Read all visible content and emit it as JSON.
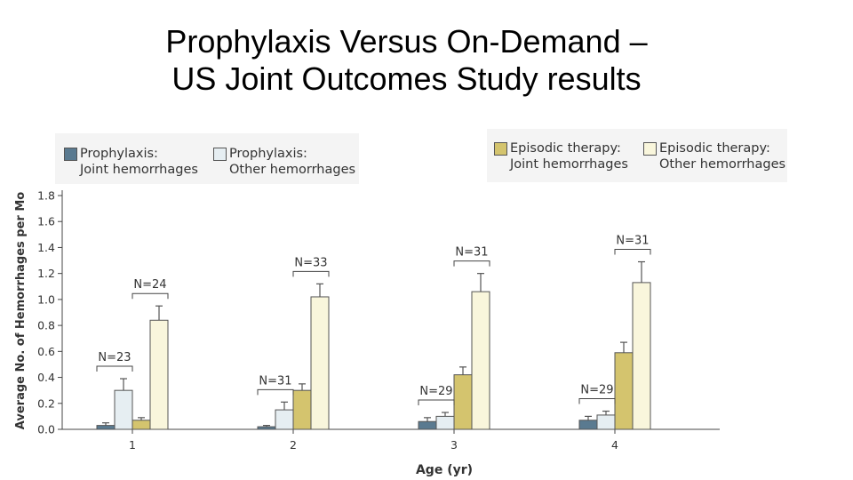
{
  "slide": {
    "title_line1": "Prophylaxis Versus On-Demand –",
    "title_line2": "US Joint Outcomes Study results"
  },
  "legend": [
    {
      "label": "Prophylaxis:\nJoint hemorrhages",
      "color": "#5a7a90"
    },
    {
      "label": "Prophylaxis:\nOther hemorrhages",
      "color": "#e6eef2"
    },
    {
      "label": "Episodic therapy:\nJoint hemorrhages",
      "color": "#d4c46e"
    },
    {
      "label": "Episodic therapy:\nOther hemorrhages",
      "color": "#f9f6dc"
    }
  ],
  "chart_data": {
    "type": "bar",
    "title": "Prophylaxis Versus On-Demand – US Joint Outcomes Study results",
    "xlabel": "Age (yr)",
    "ylabel": "Average No. of Hemorrhages per Mo",
    "categories": [
      "1",
      "2",
      "3",
      "4"
    ],
    "ylim": [
      0,
      1.8
    ],
    "yticks": [
      "0.0",
      "0.2",
      "0.4",
      "0.6",
      "0.8",
      "1.0",
      "1.2",
      "1.4",
      "1.6",
      "1.8"
    ],
    "series": [
      {
        "name": "Prophylaxis: Joint hemorrhages",
        "values": [
          0.03,
          0.02,
          0.06,
          0.07
        ],
        "error_upper": [
          0.05,
          0.03,
          0.09,
          0.1
        ]
      },
      {
        "name": "Prophylaxis: Other hemorrhages",
        "values": [
          0.3,
          0.15,
          0.1,
          0.11
        ],
        "error_upper": [
          0.39,
          0.21,
          0.13,
          0.14
        ]
      },
      {
        "name": "Episodic therapy: Joint hemorrhages",
        "values": [
          0.07,
          0.3,
          0.42,
          0.59
        ],
        "error_upper": [
          0.09,
          0.35,
          0.48,
          0.67
        ]
      },
      {
        "name": "Episodic therapy: Other hemorrhages",
        "values": [
          0.84,
          1.02,
          1.06,
          1.13
        ],
        "error_upper": [
          0.95,
          1.12,
          1.2,
          1.29
        ]
      }
    ],
    "annotations": [
      {
        "category": "1",
        "group": "Prophylaxis",
        "text": "N=23"
      },
      {
        "category": "1",
        "group": "Episodic therapy",
        "text": "N=24"
      },
      {
        "category": "2",
        "group": "Prophylaxis",
        "text": "N=31"
      },
      {
        "category": "2",
        "group": "Episodic therapy",
        "text": "N=33"
      },
      {
        "category": "3",
        "group": "Prophylaxis",
        "text": "N=29"
      },
      {
        "category": "3",
        "group": "Episodic therapy",
        "text": "N=31"
      },
      {
        "category": "4",
        "group": "Prophylaxis",
        "text": "N=29"
      },
      {
        "category": "4",
        "group": "Episodic therapy",
        "text": "N=31"
      }
    ]
  }
}
